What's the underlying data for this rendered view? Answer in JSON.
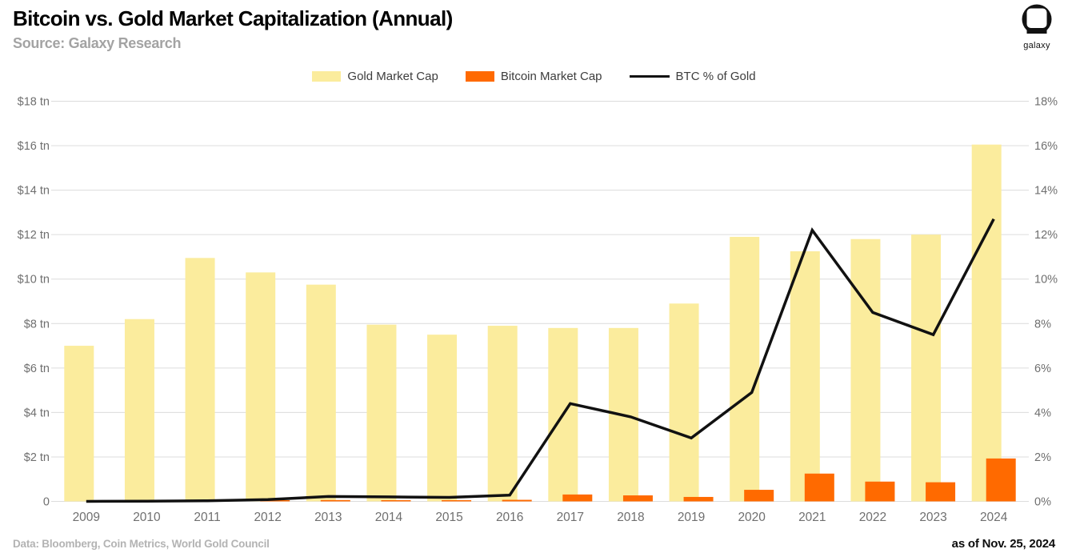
{
  "header": {
    "title": "Bitcoin vs. Gold Market Capitalization (Annual)",
    "source": "Source: Galaxy Research",
    "logo_text": "galaxy"
  },
  "legend": [
    {
      "label": "Gold Market Cap",
      "color": "#FBEC9D",
      "type": "swatch"
    },
    {
      "label": "Bitcoin Market Cap",
      "color": "#FF6A00",
      "type": "swatch"
    },
    {
      "label": "BTC % of Gold",
      "color": "#111111",
      "type": "line"
    }
  ],
  "footer": {
    "data_note": "Data: Bloomberg, Coin Metrics, World Gold Council",
    "as_of": "as of Nov. 25, 2024"
  },
  "chart_data": {
    "type": "combo-bar-line",
    "categories": [
      "2009",
      "2010",
      "2011",
      "2012",
      "2013",
      "2014",
      "2015",
      "2016",
      "2017",
      "2018",
      "2019",
      "2020",
      "2021",
      "2022",
      "2023",
      "2024"
    ],
    "series": [
      {
        "name": "Gold Market Cap",
        "type": "bar",
        "axis": "left",
        "unit": "$ tn",
        "color": "#FBEC9D",
        "values": [
          7.0,
          8.2,
          10.95,
          10.3,
          9.75,
          7.95,
          7.5,
          7.9,
          7.8,
          7.8,
          8.9,
          11.9,
          11.25,
          11.8,
          12.0,
          16.05
        ]
      },
      {
        "name": "Bitcoin Market Cap",
        "type": "bar",
        "axis": "left",
        "unit": "$ tn",
        "color": "#FF6A00",
        "values": [
          0,
          0,
          0,
          0.02,
          0.06,
          0.05,
          0.05,
          0.07,
          0.31,
          0.27,
          0.2,
          0.52,
          1.25,
          0.89,
          0.86,
          1.93
        ]
      },
      {
        "name": "BTC % of Gold",
        "type": "line",
        "axis": "right",
        "unit": "%",
        "color": "#111111",
        "values": [
          0,
          0.01,
          0.03,
          0.08,
          0.22,
          0.2,
          0.18,
          0.28,
          4.4,
          3.8,
          2.85,
          4.9,
          12.2,
          8.5,
          7.5,
          12.7
        ]
      }
    ],
    "left_axis": {
      "label_format": "$ tn",
      "min": 0,
      "max": 18,
      "ticks": [
        "0",
        "$2 tn",
        "$4 tn",
        "$6 tn",
        "$8 tn",
        "$10 tn",
        "$12 tn",
        "$14 tn",
        "$16 tn",
        "$18 tn"
      ]
    },
    "right_axis": {
      "label_format": "%",
      "min": 0,
      "max": 18,
      "ticks": [
        "0%",
        "2%",
        "4%",
        "6%",
        "8%",
        "10%",
        "12%",
        "14%",
        "16%",
        "18%"
      ]
    },
    "grid": true,
    "legend_position": "top-center",
    "title": "Bitcoin vs. Gold Market Capitalization (Annual)",
    "subtitle": "Source: Galaxy Research"
  }
}
